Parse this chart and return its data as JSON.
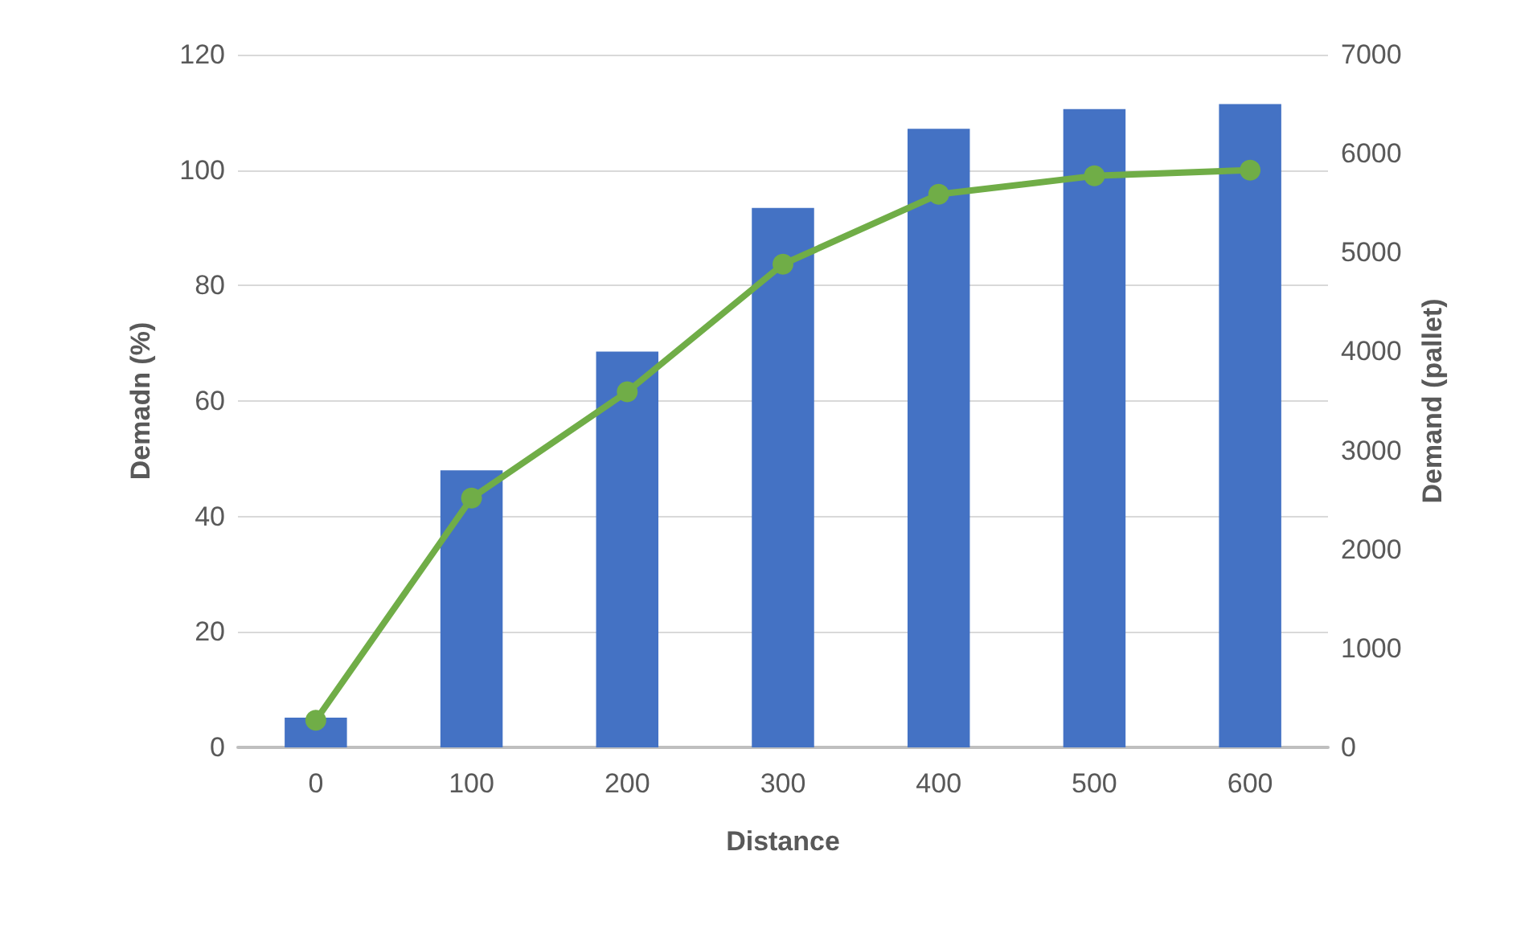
{
  "chart_data": {
    "type": "bar",
    "xlabel": "Distance",
    "ylabel": "Demadn (%)",
    "y2label": "Demand (pallet)",
    "categories": [
      "0",
      "100",
      "200",
      "300",
      "400",
      "500",
      "600"
    ],
    "series": [
      {
        "axis": "y2",
        "color": "#4472c4",
        "values": [
          300,
          2800,
          4000,
          5450,
          6250,
          6450,
          6500
        ]
      },
      {
        "type": "line",
        "color": "#70ad47",
        "marker": "circle",
        "values": [
          4.7,
          43.2,
          61.6,
          83.7,
          95.8,
          99.0,
          100
        ]
      }
    ],
    "ylim": [
      0,
      120
    ],
    "yticks": [
      0,
      20,
      40,
      60,
      80,
      100,
      120
    ],
    "y2lim": [
      0,
      7000
    ],
    "y2ticks": [
      0,
      1000,
      2000,
      3000,
      4000,
      5000,
      6000,
      7000
    ],
    "grid": "y"
  }
}
